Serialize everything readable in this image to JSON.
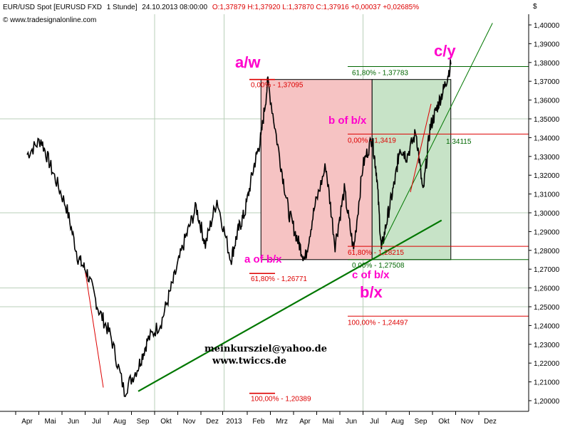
{
  "header": {
    "instrument": "EUR/USD Spot [EURUSD FXD",
    "timeframe": "1 Stunde]",
    "timestamp": "24.10.2013 08:00:00",
    "ohlc": "O:1,37879 H:1,37920 L:1,37870 C:1,37916 +0,00037 +0,02685%",
    "website": "© www.tradesignalonline.com"
  },
  "currency_symbol": "$",
  "colors": {
    "price": "#000000",
    "wave_label": "#ff00cc",
    "fib_red": "#dd0000",
    "fib_green": "#006600",
    "trend_green": "#007700",
    "box_red_fill": "#f6c3c3",
    "box_green_fill": "#c7e3c7",
    "grid": "#b9cfb9"
  },
  "chart_data": {
    "type": "line",
    "title": "EUR/USD Spot [EURUSD FXD 1 Stunde]",
    "xlabel": "",
    "ylabel": "$",
    "ylim": [
      1.195,
      1.405
    ],
    "grid": true,
    "x_ticks": [
      "Apr",
      "Mai",
      "Jun",
      "Jul",
      "Aug",
      "Sep",
      "Okt",
      "Nov",
      "Dez",
      "2013",
      "Feb",
      "Mrz",
      "Apr",
      "Mai",
      "Jun",
      "Jul",
      "Aug",
      "Sep",
      "Okt",
      "Nov",
      "Dez"
    ],
    "y_ticks": [
      "1,40000",
      "1,39000",
      "1,38000",
      "1,37000",
      "1,36000",
      "1,35000",
      "1,34000",
      "1,33000",
      "1,32000",
      "1,31000",
      "1,30000",
      "1,29000",
      "1,28000",
      "1,27000",
      "1,26000",
      "1,25000",
      "1,24000",
      "1,23000",
      "1,22000",
      "1,21000",
      "1,20000"
    ],
    "price_series": {
      "x": [
        0,
        0.6,
        1.1,
        1.7,
        2.2,
        2.6,
        3.1,
        3.6,
        4.2,
        4.8,
        5.2,
        5.8,
        6.3,
        6.8,
        7.3,
        7.7,
        8.2,
        8.8,
        9.1,
        9.4,
        9.8,
        10.1,
        10.4,
        10.9,
        11.3,
        11.7,
        12.0,
        12.4,
        12.9,
        13.3,
        13.7,
        14.1,
        14.5,
        14.9,
        15.1,
        15.3,
        15.6,
        15.9,
        16.1,
        16.4,
        16.8,
        17.1,
        17.4,
        17.7,
        18.0,
        18.3
      ],
      "values": [
        1.331,
        1.339,
        1.322,
        1.303,
        1.276,
        1.268,
        1.248,
        1.235,
        1.205,
        1.218,
        1.232,
        1.242,
        1.263,
        1.285,
        1.303,
        1.283,
        1.307,
        1.275,
        1.29,
        1.3,
        1.325,
        1.34,
        1.37,
        1.33,
        1.3,
        1.285,
        1.275,
        1.302,
        1.325,
        1.283,
        1.312,
        1.28,
        1.325,
        1.34,
        1.32,
        1.28,
        1.3,
        1.318,
        1.335,
        1.33,
        1.343,
        1.31,
        1.345,
        1.356,
        1.366,
        1.379
      ]
    },
    "trendlines": [
      {
        "from": [
          4.8,
          1.205
        ],
        "to": [
          17.9,
          1.296
        ]
      },
      {
        "from": [
          15.3,
          1.282
        ],
        "to": [
          20.1,
          1.401
        ]
      }
    ],
    "zones": [
      {
        "x": [
          10.1,
          14.9
        ],
        "y": [
          1.27508,
          1.37095
        ]
      },
      {
        "x": [
          14.9,
          18.3
        ],
        "y": [
          1.27508,
          1.37095
        ]
      }
    ],
    "fib_levels_red": [
      {
        "label": "0,00% - 1,37095",
        "value": 1.37095
      },
      {
        "label": "61,80% - 1,26771",
        "value": 1.26771
      },
      {
        "label": "100,00% - 1,20389",
        "value": 1.20389
      }
    ],
    "fib_levels_green": [
      {
        "label": "61,80% - 1,37783",
        "value": 1.37783
      },
      {
        "label": "0,00% - 1,27508",
        "value": 1.27508
      }
    ],
    "fib_levels_second": [
      {
        "label": "0,00% - 1,3419",
        "value": 1.3419
      },
      {
        "label": "61,80% - 1,28215",
        "value": 1.28215
      },
      {
        "label": "100,00% - 1,24497",
        "value": 1.24497
      }
    ],
    "price_label": "1,34115",
    "wave_labels": [
      {
        "text": "a/w",
        "size": "large"
      },
      {
        "text": "c/y",
        "size": "large"
      },
      {
        "text": "b of b/x",
        "size": "small"
      },
      {
        "text": "a of b/x",
        "size": "small"
      },
      {
        "text": "c of b/x",
        "size": "small"
      },
      {
        "text": "b/x",
        "size": "large"
      }
    ]
  },
  "contact": {
    "email": "meinkursziel@yahoo.de",
    "website": "www.twiccs.de"
  }
}
